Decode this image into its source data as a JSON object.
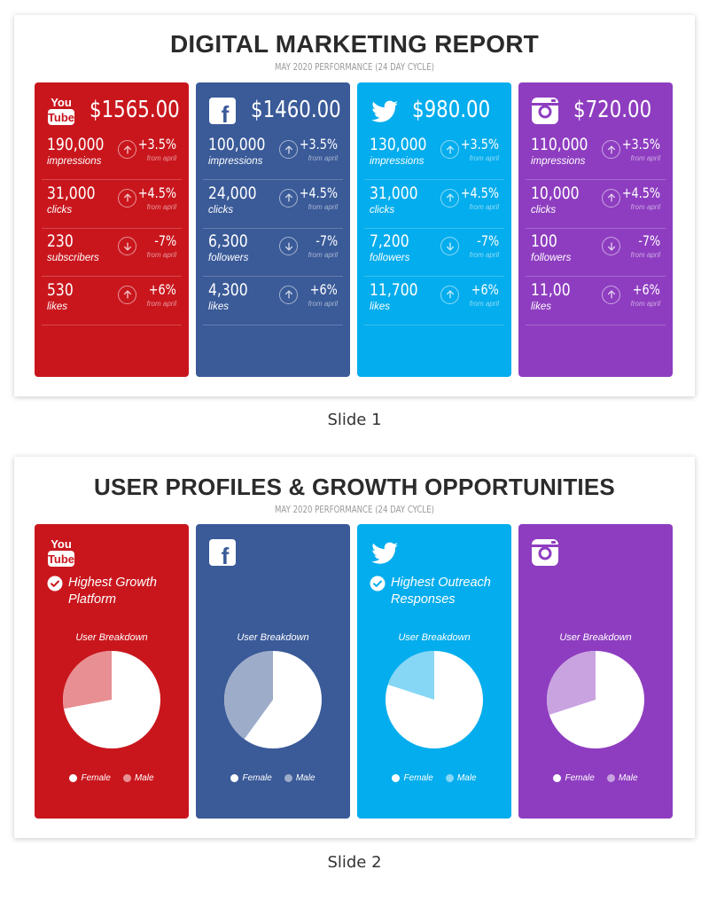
{
  "slide1": {
    "title": "DIGITAL MARKETING REPORT",
    "subtitle": "MAY 2020 PERFORMANCE (24 DAY CYCLE)",
    "caption": "Slide 1",
    "cards": [
      {
        "platform_icon": "youtube-icon",
        "color": "#c9161d",
        "amount": "$1565.00",
        "metrics": [
          {
            "value": "190,000",
            "label": "impressions",
            "direction": "up",
            "change": "+3.5%",
            "from": "from april"
          },
          {
            "value": "31,000",
            "label": "clicks",
            "direction": "up",
            "change": "+4.5%",
            "from": "from april"
          },
          {
            "value": "230",
            "label": "subscribers",
            "direction": "down",
            "change": "-7%",
            "from": "from april"
          },
          {
            "value": "530",
            "label": "likes",
            "direction": "up",
            "change": "+6%",
            "from": "from april"
          }
        ]
      },
      {
        "platform_icon": "facebook-icon",
        "color": "#3a5a98",
        "amount": "$1460.00",
        "metrics": [
          {
            "value": "100,000",
            "label": "impressions",
            "direction": "up",
            "change": "+3.5%",
            "from": "from april"
          },
          {
            "value": "24,000",
            "label": "clicks",
            "direction": "up",
            "change": "+4.5%",
            "from": "from april"
          },
          {
            "value": "6,300",
            "label": "followers",
            "direction": "down",
            "change": "-7%",
            "from": "from april"
          },
          {
            "value": "4,300",
            "label": "likes",
            "direction": "up",
            "change": "+6%",
            "from": "from april"
          }
        ]
      },
      {
        "platform_icon": "twitter-icon",
        "color": "#04aded",
        "amount": "$980.00",
        "metrics": [
          {
            "value": "130,000",
            "label": "impressions",
            "direction": "up",
            "change": "+3.5%",
            "from": "from april"
          },
          {
            "value": "31,000",
            "label": "clicks",
            "direction": "up",
            "change": "+4.5%",
            "from": "from april"
          },
          {
            "value": "7,200",
            "label": "followers",
            "direction": "down",
            "change": "-7%",
            "from": "from april"
          },
          {
            "value": "11,700",
            "label": "likes",
            "direction": "up",
            "change": "+6%",
            "from": "from april"
          }
        ]
      },
      {
        "platform_icon": "instagram-icon",
        "color": "#8e3dc0",
        "amount": "$720.00",
        "metrics": [
          {
            "value": "110,000",
            "label": "impressions",
            "direction": "up",
            "change": "+3.5%",
            "from": "from april"
          },
          {
            "value": "10,000",
            "label": "clicks",
            "direction": "up",
            "change": "+4.5%",
            "from": "from april"
          },
          {
            "value": "100",
            "label": "followers",
            "direction": "down",
            "change": "-7%",
            "from": "from april"
          },
          {
            "value": "11,00",
            "label": "likes",
            "direction": "up",
            "change": "+6%",
            "from": "from april"
          }
        ]
      }
    ]
  },
  "slide2": {
    "title": "USER PROFILES & GROWTH OPPORTUNITIES",
    "subtitle": "MAY 2020 PERFORMANCE (24 DAY CYCLE)",
    "caption": "Slide 2",
    "cards": [
      {
        "platform_icon": "youtube-icon",
        "color": "#c9161d",
        "male_color": "#e88f93",
        "badge": "Highest Growth Platform",
        "breakdown_title": "User Breakdown",
        "female_label": "Female",
        "male_label": "Male",
        "female_pct": 72,
        "male_pct": 28
      },
      {
        "platform_icon": "facebook-icon",
        "color": "#3a5a98",
        "male_color": "#9dacc9",
        "badge": "",
        "breakdown_title": "User Breakdown",
        "female_label": "Female",
        "male_label": "Male",
        "female_pct": 60,
        "male_pct": 40
      },
      {
        "platform_icon": "twitter-icon",
        "color": "#04aded",
        "male_color": "#86d6f6",
        "badge": "Highest Outreach Responses",
        "breakdown_title": "User Breakdown",
        "female_label": "Female",
        "male_label": "Male",
        "female_pct": 80,
        "male_pct": 20
      },
      {
        "platform_icon": "instagram-icon",
        "color": "#8e3dc0",
        "male_color": "#c9a2e0",
        "badge": "",
        "breakdown_title": "User Breakdown",
        "female_label": "Female",
        "male_label": "Male",
        "female_pct": 70,
        "male_pct": 30
      }
    ]
  }
}
